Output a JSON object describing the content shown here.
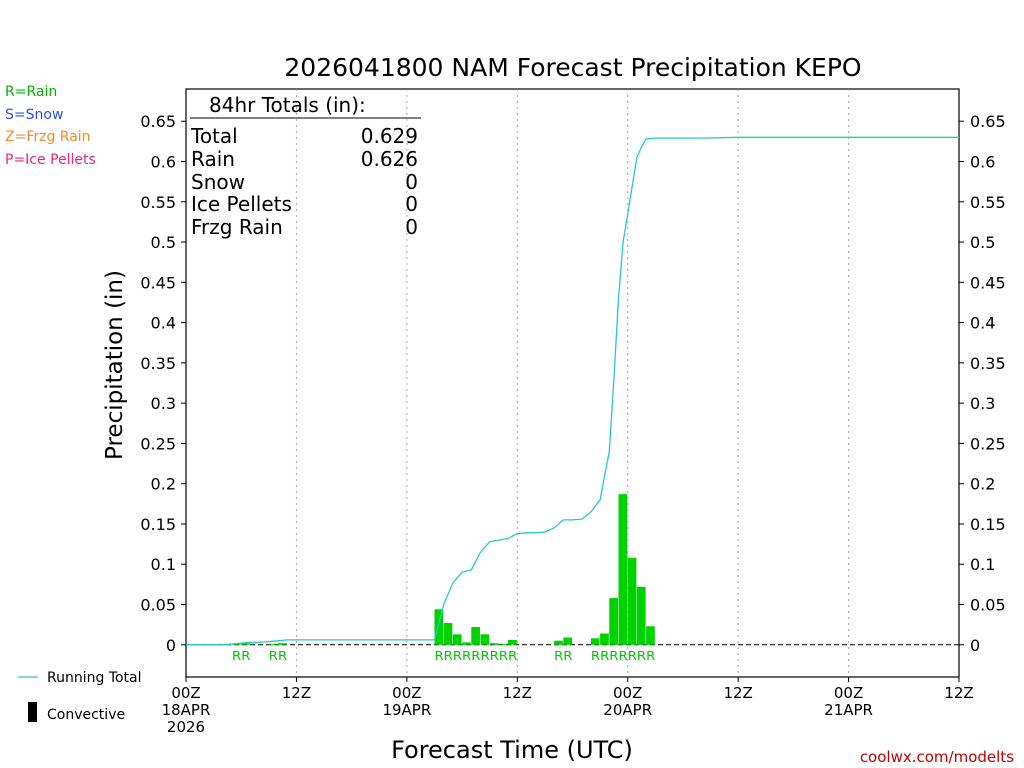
{
  "title": "2026041800 NAM Forecast Precipitation KEPO",
  "colors": {
    "rain": "#00b400",
    "snow": "#2850e6",
    "frzg_rain": "#f08c28",
    "ice_pellets": "#e6287a",
    "running_total": "#28c8c8",
    "bars": "#00d200",
    "credit": "#c00000"
  },
  "precip_legend": [
    {
      "label": "R=Rain",
      "color": "#00b400"
    },
    {
      "label": "S=Snow",
      "color": "#2850e6"
    },
    {
      "label": "Z=Frzg Rain",
      "color": "#f08c28"
    },
    {
      "label": "P=Ice Pellets",
      "color": "#e6287a"
    }
  ],
  "totals": {
    "header": "84hr Totals (in):",
    "rows": [
      {
        "label": "Total",
        "value": "0.629"
      },
      {
        "label": "Rain",
        "value": "0.626"
      },
      {
        "label": "Snow",
        "value": "0"
      },
      {
        "label": "Ice Pellets",
        "value": "0"
      },
      {
        "label": "Frzg Rain",
        "value": "0"
      }
    ]
  },
  "bottom_legend": {
    "running_total": "Running Total",
    "convective": "Convective"
  },
  "credit": "coolwx.com/modelts",
  "chart_data": {
    "type": "bar",
    "title": "2026041800 NAM Forecast Precipitation KEPO",
    "xlabel": "Forecast Time (UTC)",
    "ylabel": "Precipitation (in)",
    "xlim": [
      0,
      84
    ],
    "ylim": [
      -0.04,
      0.69
    ],
    "yticks": [
      0,
      0.05,
      0.1,
      0.15,
      0.2,
      0.25,
      0.3,
      0.35,
      0.4,
      0.45,
      0.5,
      0.55,
      0.6,
      0.65
    ],
    "ytick_labels": [
      "0",
      "0.05",
      "0.1",
      "0.15",
      "0.2",
      "0.25",
      "0.3",
      "0.35",
      "0.4",
      "0.45",
      "0.5",
      "0.55",
      "0.6",
      "0.65"
    ],
    "xticks": [
      {
        "hour": 0,
        "lines": [
          "00Z",
          "18APR",
          "2026"
        ]
      },
      {
        "hour": 12,
        "lines": [
          "12Z"
        ]
      },
      {
        "hour": 24,
        "lines": [
          "00Z",
          "19APR"
        ]
      },
      {
        "hour": 36,
        "lines": [
          "12Z"
        ]
      },
      {
        "hour": 48,
        "lines": [
          "00Z",
          "20APR"
        ]
      },
      {
        "hour": 60,
        "lines": [
          "12Z"
        ]
      },
      {
        "hour": 72,
        "lines": [
          "00Z",
          "21APR"
        ]
      },
      {
        "hour": 84,
        "lines": [
          "12Z"
        ]
      }
    ],
    "grid_hours": [
      12,
      24,
      36,
      48,
      60,
      72
    ],
    "bar_width_hours": 1,
    "bars": [
      {
        "hour": 6,
        "value": 0.001
      },
      {
        "hour": 7,
        "value": 0.002
      },
      {
        "hour": 10,
        "value": 0.001
      },
      {
        "hour": 11,
        "value": 0.002
      },
      {
        "hour": 28,
        "value": 0.044
      },
      {
        "hour": 29,
        "value": 0.027
      },
      {
        "hour": 30,
        "value": 0.013
      },
      {
        "hour": 31,
        "value": 0.003
      },
      {
        "hour": 32,
        "value": 0.022
      },
      {
        "hour": 33,
        "value": 0.013
      },
      {
        "hour": 34,
        "value": 0.002
      },
      {
        "hour": 35,
        "value": 0.001
      },
      {
        "hour": 36,
        "value": 0.006
      },
      {
        "hour": 41,
        "value": 0.005
      },
      {
        "hour": 42,
        "value": 0.009
      },
      {
        "hour": 45,
        "value": 0.008
      },
      {
        "hour": 46,
        "value": 0.014
      },
      {
        "hour": 47,
        "value": 0.058
      },
      {
        "hour": 48,
        "value": 0.187
      },
      {
        "hour": 49,
        "value": 0.108
      },
      {
        "hour": 50,
        "value": 0.072
      },
      {
        "hour": 51,
        "value": 0.023
      }
    ],
    "running_total": {
      "name": "Running Total",
      "x": [
        0,
        4,
        5,
        6,
        7,
        8,
        9,
        10,
        11,
        12,
        13,
        14,
        20,
        24,
        27,
        28,
        29,
        30,
        31,
        32,
        33,
        34,
        35,
        36,
        37,
        38,
        39,
        40,
        41,
        42,
        43,
        44,
        45,
        46,
        46.5,
        47,
        47.5,
        48,
        48.5,
        49,
        49.5,
        50,
        51,
        52,
        56,
        60,
        70,
        84
      ],
      "y": [
        0,
        0,
        0.001,
        0.002,
        0.003,
        0.003,
        0.004,
        0.005,
        0.006,
        0.006,
        0.006,
        0.006,
        0.006,
        0.006,
        0.006,
        0.05,
        0.077,
        0.09,
        0.093,
        0.115,
        0.128,
        0.13,
        0.132,
        0.138,
        0.139,
        0.139,
        0.14,
        0.145,
        0.155,
        0.155,
        0.156,
        0.165,
        0.18,
        0.24,
        0.33,
        0.43,
        0.5,
        0.535,
        0.57,
        0.605,
        0.618,
        0.628,
        0.629,
        0.629,
        0.629,
        0.63,
        0.63,
        0.63
      ]
    },
    "type_labels": [
      {
        "hours": [
          6,
          7
        ],
        "text": "RR"
      },
      {
        "hours": [
          10,
          11
        ],
        "text": "RR"
      },
      {
        "hours": [
          28,
          36
        ],
        "text": "RRRRRRRRR"
      },
      {
        "hours": [
          41,
          42
        ],
        "text": "RR"
      },
      {
        "hours": [
          45,
          51
        ],
        "text": "RRRRRRR"
      }
    ]
  }
}
